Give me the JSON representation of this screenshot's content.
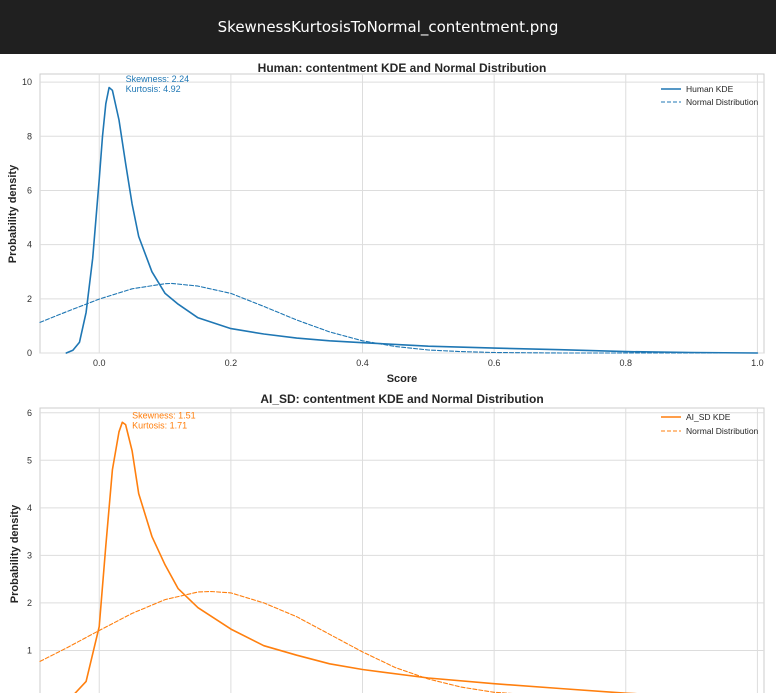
{
  "window": {
    "title": "SkewnessKurtosisToNormal_contentment.png"
  },
  "chart_data": [
    {
      "type": "line",
      "title": "Human: contentment KDE and Normal Distribution",
      "xlabel": "Score",
      "ylabel": "Probability density",
      "xlim": [
        -0.09,
        1.01
      ],
      "ylim": [
        0,
        10.3
      ],
      "xticks": [
        0.0,
        0.2,
        0.4,
        0.6,
        0.8,
        1.0
      ],
      "xtick_labels": [
        "0.0",
        "0.2",
        "0.4",
        "0.6",
        "0.8",
        "1.0"
      ],
      "yticks": [
        0,
        2,
        4,
        6,
        8,
        10
      ],
      "ytick_labels": [
        "0",
        "2",
        "4",
        "6",
        "8",
        "10"
      ],
      "grid": true,
      "legend_position": "top-right",
      "color": "#1f77b4",
      "annotation": {
        "lines": [
          "Skewness: 2.24",
          "Kurtosis: 4.92"
        ],
        "x": 0.04,
        "y": 10.0
      },
      "series": [
        {
          "name": "Human KDE",
          "style": "solid",
          "x": [
            -0.05,
            -0.04,
            -0.03,
            -0.02,
            -0.01,
            0.0,
            0.005,
            0.01,
            0.015,
            0.02,
            0.03,
            0.04,
            0.05,
            0.06,
            0.08,
            0.1,
            0.12,
            0.15,
            0.2,
            0.25,
            0.3,
            0.35,
            0.4,
            0.5,
            0.6,
            0.7,
            0.8,
            0.9,
            1.0
          ],
          "y": [
            0.0,
            0.1,
            0.4,
            1.5,
            3.5,
            6.4,
            8.0,
            9.2,
            9.8,
            9.7,
            8.6,
            7.0,
            5.5,
            4.3,
            3.0,
            2.2,
            1.8,
            1.3,
            0.9,
            0.7,
            0.55,
            0.45,
            0.38,
            0.25,
            0.18,
            0.12,
            0.05,
            0.02,
            0.0
          ]
        },
        {
          "name": "Normal Distribution",
          "style": "dashed",
          "mean": 0.11,
          "std": 0.155,
          "x": [
            -0.09,
            -0.05,
            0.0,
            0.05,
            0.1,
            0.11,
            0.15,
            0.2,
            0.25,
            0.3,
            0.35,
            0.4,
            0.45,
            0.5,
            0.55,
            0.6,
            0.7,
            0.8,
            1.0
          ],
          "y": [
            1.13,
            1.52,
            1.99,
            2.37,
            2.56,
            2.57,
            2.47,
            2.2,
            1.72,
            1.22,
            0.78,
            0.45,
            0.24,
            0.11,
            0.05,
            0.02,
            0.0,
            0.0,
            0.0
          ]
        }
      ]
    },
    {
      "type": "line",
      "title": "AI_SD: contentment KDE and Normal Distribution",
      "xlabel": "",
      "ylabel": "Probability density",
      "xlim": [
        -0.09,
        1.01
      ],
      "ylim": [
        0,
        6.1
      ],
      "yticks": [
        0,
        1,
        2,
        3,
        4,
        5,
        6
      ],
      "ytick_labels": [
        "0",
        "1",
        "2",
        "3",
        "4",
        "5",
        "6"
      ],
      "grid": true,
      "legend_position": "top-right",
      "color": "#ff7f0e",
      "annotation": {
        "lines": [
          "Skewness: 1.51",
          "Kurtosis: 1.71"
        ],
        "x": 0.05,
        "y": 5.88
      },
      "series": [
        {
          "name": "AI_SD KDE",
          "style": "solid",
          "x": [
            -0.06,
            -0.04,
            -0.02,
            0.0,
            0.01,
            0.02,
            0.03,
            0.035,
            0.04,
            0.05,
            0.06,
            0.08,
            0.1,
            0.12,
            0.15,
            0.2,
            0.25,
            0.3,
            0.35,
            0.4,
            0.5,
            0.6,
            0.7,
            0.8,
            0.9,
            1.0
          ],
          "y": [
            0.0,
            0.05,
            0.35,
            1.5,
            3.2,
            4.8,
            5.6,
            5.8,
            5.75,
            5.2,
            4.3,
            3.4,
            2.8,
            2.3,
            1.9,
            1.45,
            1.1,
            0.9,
            0.72,
            0.6,
            0.42,
            0.3,
            0.2,
            0.1,
            0.03,
            0.0
          ]
        },
        {
          "name": "Normal Distribution",
          "style": "dashed",
          "mean": 0.17,
          "std": 0.178,
          "x": [
            -0.09,
            -0.05,
            0.0,
            0.05,
            0.1,
            0.15,
            0.17,
            0.2,
            0.25,
            0.3,
            0.35,
            0.4,
            0.45,
            0.5,
            0.55,
            0.6,
            0.7,
            0.8,
            1.0
          ],
          "y": [
            0.77,
            1.05,
            1.42,
            1.78,
            2.07,
            2.23,
            2.24,
            2.21,
            2.0,
            1.71,
            1.34,
            0.97,
            0.64,
            0.4,
            0.23,
            0.12,
            0.03,
            0.0,
            0.0
          ]
        }
      ]
    }
  ]
}
